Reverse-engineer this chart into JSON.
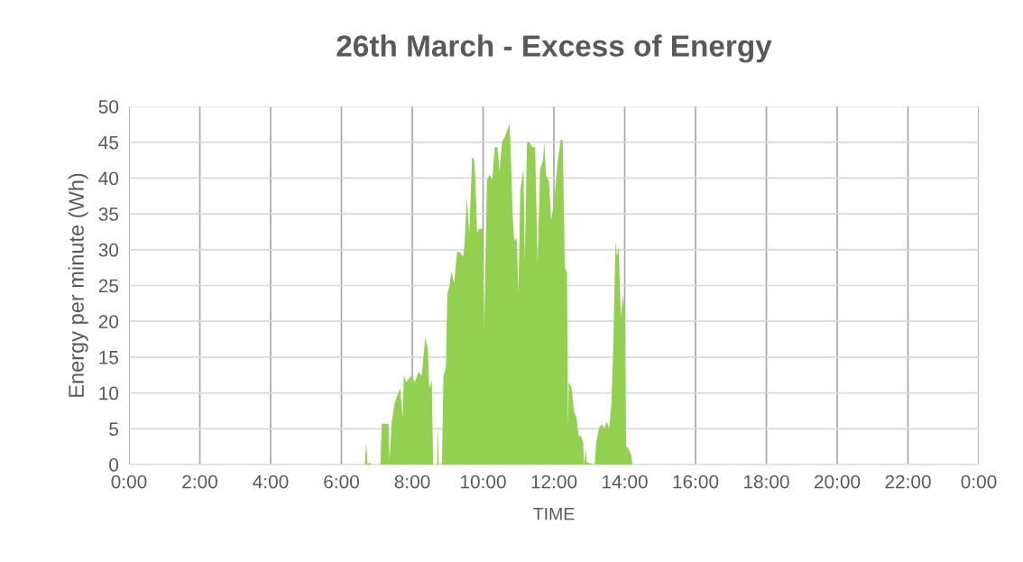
{
  "chart_data": {
    "type": "area",
    "title": "26th March - Excess of Energy",
    "xlabel": "TIME",
    "ylabel": "Energy per minute (Wh)",
    "x": [
      0,
      6.66,
      6.7,
      6.74,
      6.8,
      6.84,
      7.1,
      7.14,
      7.33,
      7.36,
      7.42,
      7.5,
      7.56,
      7.66,
      7.73,
      7.76,
      7.83,
      7.99,
      8.07,
      8.18,
      8.26,
      8.37,
      8.44,
      8.48,
      8.55,
      8.59,
      8.7,
      8.72,
      8.75,
      8.82,
      8.84,
      8.88,
      8.95,
      8.99,
      9.05,
      9.11,
      9.18,
      9.27,
      9.35,
      9.44,
      9.48,
      9.54,
      9.61,
      9.69,
      9.74,
      9.78,
      9.83,
      9.88,
      9.95,
      9.99,
      10.03,
      10.11,
      10.18,
      10.26,
      10.33,
      10.41,
      10.46,
      10.54,
      10.62,
      10.75,
      10.79,
      10.84,
      10.88,
      10.95,
      11.0,
      11.05,
      11.14,
      11.18,
      11.24,
      11.3,
      11.39,
      11.47,
      11.54,
      11.61,
      11.69,
      11.73,
      11.78,
      11.86,
      11.92,
      12.0,
      12.11,
      12.19,
      12.25,
      12.31,
      12.37,
      12.4,
      12.42,
      12.5,
      12.57,
      12.64,
      12.7,
      12.76,
      12.83,
      12.85,
      12.9,
      12.93,
      13.15,
      13.2,
      13.28,
      13.36,
      13.42,
      13.49,
      13.56,
      13.62,
      13.67,
      13.74,
      13.78,
      13.83,
      13.89,
      13.95,
      14.0,
      14.04,
      14.12,
      14.19,
      14.22,
      24
    ],
    "values": [
      0,
      0,
      3.1,
      0,
      0.3,
      0,
      0,
      5.7,
      5.7,
      0.6,
      6.0,
      8.5,
      9.4,
      10.7,
      6.5,
      12.4,
      11.5,
      12.5,
      11.5,
      13.0,
      12.3,
      17.8,
      16.1,
      10.6,
      11.8,
      0,
      0,
      5.6,
      0,
      0,
      0.4,
      12.3,
      13.6,
      23.9,
      24.9,
      27.0,
      25.3,
      29.8,
      29.6,
      29.0,
      31.0,
      37.4,
      32.3,
      42.8,
      42.8,
      40.1,
      32.4,
      32.9,
      32.9,
      33.1,
      18.6,
      39.6,
      40.5,
      39.8,
      44.3,
      44.3,
      41.0,
      45.1,
      45.8,
      47.6,
      42.4,
      34.3,
      31.2,
      31.6,
      24.0,
      38.3,
      41.2,
      28.5,
      44.9,
      45.1,
      44.3,
      44.3,
      28.1,
      41.2,
      42.4,
      45.1,
      40.3,
      39.6,
      34.2,
      36.3,
      42.4,
      45.3,
      45.3,
      27.4,
      26.9,
      5.2,
      11.5,
      10.7,
      7.4,
      6.5,
      4.0,
      4.0,
      3.1,
      0,
      2.1,
      0.3,
      0,
      3.3,
      5.2,
      5.6,
      5.0,
      6.0,
      5.0,
      8.2,
      15.3,
      31.2,
      29.1,
      30.4,
      20.6,
      23.6,
      21.5,
      2.6,
      2.1,
      1.2,
      0,
      0
    ],
    "color": "#92d050",
    "xlim": [
      0,
      24
    ],
    "ylim": [
      0,
      50
    ],
    "xticks": [
      {
        "value": 0,
        "label": "0:00"
      },
      {
        "value": 2,
        "label": "2:00"
      },
      {
        "value": 4,
        "label": "4:00"
      },
      {
        "value": 6,
        "label": "6:00"
      },
      {
        "value": 8,
        "label": "8:00"
      },
      {
        "value": 10,
        "label": "10:00"
      },
      {
        "value": 12,
        "label": "12:00"
      },
      {
        "value": 14,
        "label": "14:00"
      },
      {
        "value": 16,
        "label": "16:00"
      },
      {
        "value": 18,
        "label": "18:00"
      },
      {
        "value": 20,
        "label": "20:00"
      },
      {
        "value": 22,
        "label": "22:00"
      },
      {
        "value": 24,
        "label": "0:00"
      }
    ],
    "yticks": [
      0,
      5,
      10,
      15,
      20,
      25,
      30,
      35,
      40,
      45,
      50
    ],
    "grid": true
  }
}
